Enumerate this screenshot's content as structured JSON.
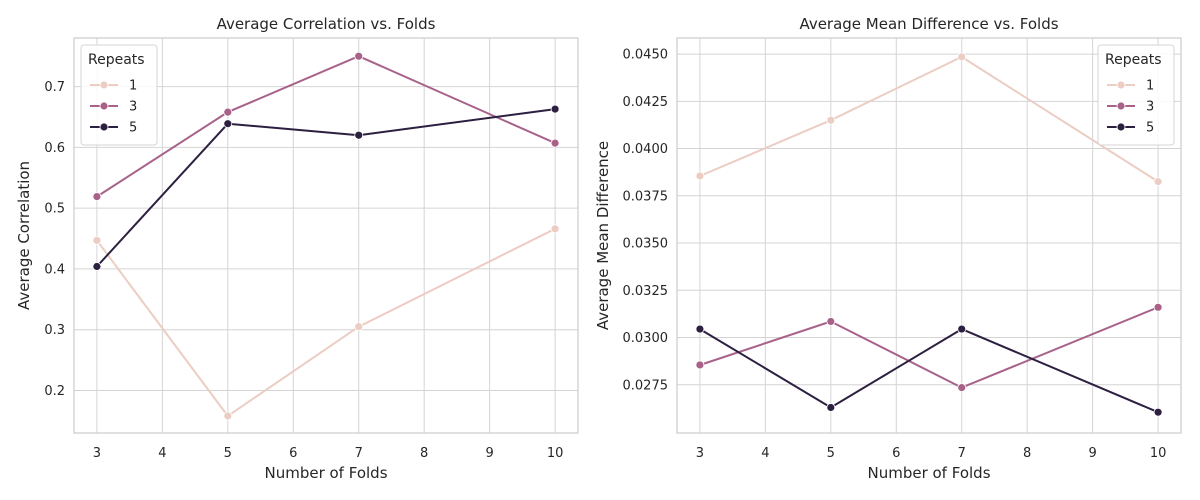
{
  "chart_data": [
    {
      "type": "line",
      "title": "Average Correlation vs. Folds",
      "xlabel": "Number of Folds",
      "ylabel": "Average Correlation",
      "x": [
        3,
        5,
        7,
        10
      ],
      "xlim": [
        2.65,
        10.35
      ],
      "ylim": [
        0.13,
        0.78
      ],
      "xticks": [
        3,
        4,
        5,
        6,
        7,
        8,
        9,
        10
      ],
      "yticks": [
        0.2,
        0.3,
        0.4,
        0.5,
        0.6,
        0.7
      ],
      "ytick_labels": [
        "0.2",
        "0.3",
        "0.4",
        "0.5",
        "0.6",
        "0.7"
      ],
      "grid": true,
      "legend": {
        "title": "Repeats",
        "placement": "upper-left"
      },
      "series": [
        {
          "name": "1",
          "color": "#ebcdc3",
          "values": [
            0.447,
            0.158,
            0.305,
            0.466
          ]
        },
        {
          "name": "3",
          "color": "#a8628a",
          "values": [
            0.519,
            0.658,
            0.75,
            0.607
          ]
        },
        {
          "name": "5",
          "color": "#2d1f40",
          "values": [
            0.404,
            0.639,
            0.62,
            0.663
          ]
        }
      ]
    },
    {
      "type": "line",
      "title": "Average Mean Difference vs. Folds",
      "xlabel": "Number of Folds",
      "ylabel": "Average Mean Difference",
      "x": [
        3,
        5,
        7,
        10
      ],
      "xlim": [
        2.65,
        10.35
      ],
      "ylim": [
        0.02495,
        0.04585
      ],
      "xticks": [
        3,
        4,
        5,
        6,
        7,
        8,
        9,
        10
      ],
      "yticks": [
        0.0275,
        0.03,
        0.0325,
        0.035,
        0.0375,
        0.04,
        0.0425,
        0.045
      ],
      "ytick_labels": [
        "0.0275",
        "0.0300",
        "0.0325",
        "0.0350",
        "0.0375",
        "0.0400",
        "0.0425",
        "0.0450"
      ],
      "grid": true,
      "legend": {
        "title": "Repeats",
        "placement": "upper-right"
      },
      "series": [
        {
          "name": "1",
          "color": "#ebcdc3",
          "values": [
            0.03855,
            0.0415,
            0.04485,
            0.03825
          ]
        },
        {
          "name": "3",
          "color": "#a8628a",
          "values": [
            0.02855,
            0.03085,
            0.02735,
            0.0316
          ]
        },
        {
          "name": "5",
          "color": "#2d1f40",
          "values": [
            0.03045,
            0.0263,
            0.03045,
            0.02605
          ]
        }
      ]
    }
  ]
}
